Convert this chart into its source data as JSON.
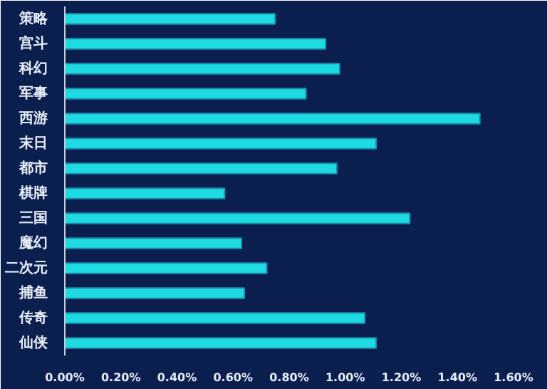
{
  "chart_data": {
    "type": "bar",
    "orientation": "horizontal",
    "categories": [
      "策略",
      "宫斗",
      "科幻",
      "军事",
      "西游",
      "末日",
      "都市",
      "棋牌",
      "三国",
      "魔幻",
      "二次元",
      "捕鱼",
      "传奇",
      "仙侠"
    ],
    "values": [
      0.75,
      0.93,
      0.98,
      0.86,
      1.48,
      1.11,
      0.97,
      0.57,
      1.23,
      0.63,
      0.72,
      0.64,
      1.07,
      1.11
    ],
    "color": "#1ddbe0",
    "xlim": [
      0,
      1.6
    ],
    "xticks": [
      {
        "value": 0,
        "label": "0.00%"
      },
      {
        "value": 0.2,
        "label": "0.20%"
      },
      {
        "value": 0.4,
        "label": "0.40%"
      },
      {
        "value": 0.6,
        "label": "0.60%"
      },
      {
        "value": 0.8,
        "label": "0.80%"
      },
      {
        "value": 1.0,
        "label": "1.00%"
      },
      {
        "value": 1.2,
        "label": "1.20%"
      },
      {
        "value": 1.4,
        "label": "1.40%"
      },
      {
        "value": 1.6,
        "label": "1.60%"
      }
    ],
    "grid": false
  }
}
